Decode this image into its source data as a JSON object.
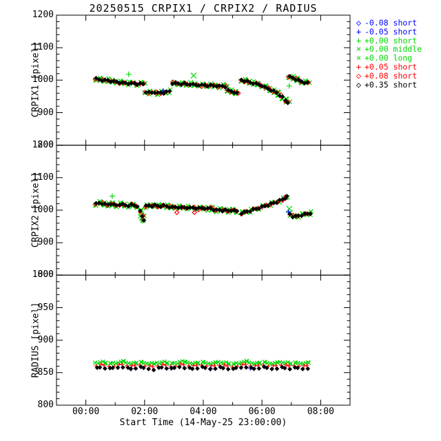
{
  "title": "20250515 CRPIX1 / CRPIX2 / RADIUS",
  "xlabel": "Start Time (14-May-25 23:00:00)",
  "x_axis": {
    "unit": "hours since 14-May-25 23:00:00",
    "range_hours": [
      0,
      10
    ],
    "minor_tick_every_hours": 1,
    "ticks": [
      {
        "t": 1,
        "label": "00:00"
      },
      {
        "t": 3,
        "label": "02:00"
      },
      {
        "t": 5,
        "label": "04:00"
      },
      {
        "t": 7,
        "label": "06:00"
      },
      {
        "t": 9,
        "label": "08:00"
      }
    ]
  },
  "legend": {
    "items": [
      {
        "symbol": "diamond-icon",
        "glyph": "◇",
        "color": "#0000ff",
        "label": "-0.08 short"
      },
      {
        "symbol": "plus-icon",
        "glyph": "+",
        "color": "#0000ff",
        "label": "-0.05 short"
      },
      {
        "symbol": "plus-icon",
        "glyph": "+",
        "color": "#00d800",
        "label": "+0.00 short"
      },
      {
        "symbol": "cross-icon",
        "glyph": "×",
        "color": "#00d800",
        "label": "+0.00 middle"
      },
      {
        "symbol": "cross-icon",
        "glyph": "×",
        "color": "#00d800",
        "label": "+0.00 long"
      },
      {
        "symbol": "plus-icon",
        "glyph": "+",
        "color": "#ff0000",
        "label": "+0.05 short"
      },
      {
        "symbol": "diamond-icon",
        "glyph": "◇",
        "color": "#ff0000",
        "label": "+0.08 short"
      },
      {
        "symbol": "diamond-icon",
        "glyph": "◇",
        "color": "#000000",
        "label": "+0.35 short"
      }
    ]
  },
  "colors": {
    "green": "#00d800",
    "red": "#ff0000",
    "blue": "#0000ff",
    "black": "#000000",
    "frame": "#000000",
    "background": "#ffffff"
  },
  "chart_data": [
    {
      "type": "scatter",
      "name": "CRPIX1",
      "ylabel": "CRPIX1 [pixel]",
      "ylim": [
        800,
        1200
      ],
      "yticks": [
        800,
        900,
        1000,
        1100,
        1200
      ],
      "yminor": 20,
      "points": [
        [
          1.35,
          1004
        ],
        [
          1.45,
          1002
        ],
        [
          1.55,
          1000
        ],
        [
          1.65,
          999
        ],
        [
          1.75,
          1000
        ],
        [
          1.85,
          997
        ],
        [
          1.95,
          995
        ],
        [
          2.05,
          996
        ],
        [
          2.15,
          993
        ],
        [
          2.25,
          991
        ],
        [
          2.35,
          992
        ],
        [
          2.45,
          990
        ],
        [
          2.55,
          989
        ],
        [
          2.65,
          991
        ],
        [
          2.75,
          988
        ],
        [
          2.85,
          989
        ],
        [
          2.95,
          988
        ],
        [
          3.05,
          964
        ],
        [
          3.15,
          962
        ],
        [
          3.25,
          961
        ],
        [
          3.35,
          963
        ],
        [
          3.45,
          960
        ],
        [
          3.55,
          962
        ],
        [
          3.65,
          961
        ],
        [
          3.75,
          963
        ],
        [
          3.85,
          966
        ],
        [
          3.95,
          991
        ],
        [
          4.05,
          989
        ],
        [
          4.15,
          990
        ],
        [
          4.25,
          988
        ],
        [
          4.35,
          989
        ],
        [
          4.45,
          987
        ],
        [
          4.55,
          988
        ],
        [
          4.65,
          986
        ],
        [
          4.75,
          985
        ],
        [
          4.85,
          986
        ],
        [
          4.95,
          984
        ],
        [
          5.05,
          985
        ],
        [
          5.15,
          983
        ],
        [
          5.25,
          984
        ],
        [
          5.35,
          982
        ],
        [
          5.45,
          983
        ],
        [
          5.55,
          981
        ],
        [
          5.65,
          982
        ],
        [
          5.75,
          980
        ],
        [
          5.85,
          968
        ],
        [
          5.95,
          966
        ],
        [
          6.05,
          963
        ],
        [
          6.15,
          959
        ],
        [
          6.3,
          1001
        ],
        [
          6.4,
          998
        ],
        [
          6.5,
          996
        ],
        [
          6.6,
          993
        ],
        [
          6.7,
          991
        ],
        [
          6.8,
          988
        ],
        [
          6.9,
          986
        ],
        [
          7.0,
          984
        ],
        [
          7.1,
          978
        ],
        [
          7.2,
          974
        ],
        [
          7.3,
          970
        ],
        [
          7.4,
          966
        ],
        [
          7.5,
          961
        ],
        [
          7.6,
          954
        ],
        [
          7.7,
          947
        ],
        [
          7.8,
          938
        ],
        [
          7.88,
          932
        ],
        [
          7.95,
          1010
        ],
        [
          8.05,
          1007
        ],
        [
          8.15,
          1003
        ],
        [
          8.25,
          999
        ],
        [
          8.35,
          996
        ],
        [
          8.45,
          993
        ],
        [
          8.55,
          991
        ]
      ],
      "outliers": {
        "green": [
          [
            2.46,
            1018
          ],
          [
            4.67,
            1014
          ],
          [
            7.93,
            982
          ]
        ],
        "blue": [
          [
            3.63,
            967
          ],
          [
            4.07,
            992
          ],
          [
            5.35,
            982
          ]
        ]
      }
    },
    {
      "type": "scatter",
      "name": "CRPIX2",
      "ylabel": "CRPIX2 [pixel]",
      "ylim": [
        800,
        1200
      ],
      "yticks": [
        800,
        900,
        1000,
        1100,
        1200
      ],
      "yminor": 20,
      "points": [
        [
          1.35,
          1019
        ],
        [
          1.45,
          1022
        ],
        [
          1.55,
          1021
        ],
        [
          1.65,
          1018
        ],
        [
          1.75,
          1017
        ],
        [
          1.85,
          1020
        ],
        [
          1.95,
          1016
        ],
        [
          2.05,
          1015
        ],
        [
          2.15,
          1018
        ],
        [
          2.25,
          1017
        ],
        [
          2.35,
          1015
        ],
        [
          2.45,
          1014
        ],
        [
          2.55,
          1016
        ],
        [
          2.65,
          1014
        ],
        [
          2.75,
          1013
        ],
        [
          2.85,
          996
        ],
        [
          2.92,
          981
        ],
        [
          2.98,
          971
        ],
        [
          3.05,
          1012
        ],
        [
          3.15,
          1014
        ],
        [
          3.25,
          1013
        ],
        [
          3.35,
          1015
        ],
        [
          3.45,
          1013
        ],
        [
          3.55,
          1012
        ],
        [
          3.65,
          1014
        ],
        [
          3.75,
          1012
        ],
        [
          3.85,
          1010
        ],
        [
          3.95,
          1008
        ],
        [
          4.05,
          1010
        ],
        [
          4.15,
          1009
        ],
        [
          4.25,
          1007
        ],
        [
          4.35,
          1009
        ],
        [
          4.45,
          1008
        ],
        [
          4.55,
          1006
        ],
        [
          4.65,
          1008
        ],
        [
          4.75,
          1007
        ],
        [
          4.85,
          1005
        ],
        [
          4.95,
          1007
        ],
        [
          5.05,
          1006
        ],
        [
          5.15,
          1004
        ],
        [
          5.25,
          1006
        ],
        [
          5.35,
          1002
        ],
        [
          5.45,
          1000
        ],
        [
          5.55,
          1001
        ],
        [
          5.65,
          999
        ],
        [
          5.75,
          1000
        ],
        [
          5.85,
          998
        ],
        [
          5.95,
          1000
        ],
        [
          6.05,
          998
        ],
        [
          6.15,
          997
        ],
        [
          6.3,
          991
        ],
        [
          6.4,
          993
        ],
        [
          6.5,
          996
        ],
        [
          6.6,
          998
        ],
        [
          6.7,
          1001
        ],
        [
          6.8,
          1004
        ],
        [
          6.9,
          1007
        ],
        [
          7.0,
          1010
        ],
        [
          7.1,
          1013
        ],
        [
          7.2,
          1016
        ],
        [
          7.3,
          1019
        ],
        [
          7.4,
          1022
        ],
        [
          7.5,
          1025
        ],
        [
          7.6,
          1029
        ],
        [
          7.7,
          1033
        ],
        [
          7.8,
          1038
        ],
        [
          7.85,
          1041
        ],
        [
          7.95,
          988
        ],
        [
          8.05,
          981
        ],
        [
          8.15,
          980
        ],
        [
          8.25,
          983
        ],
        [
          8.35,
          985
        ],
        [
          8.45,
          987
        ],
        [
          8.55,
          989
        ],
        [
          8.65,
          991
        ]
      ],
      "outliers": {
        "green": [
          [
            1.9,
            1043
          ],
          [
            2.88,
            1000
          ],
          [
            2.9,
            990
          ],
          [
            2.92,
            978
          ],
          [
            2.94,
            968
          ],
          [
            7.93,
            1004
          ]
        ],
        "red_diamond": [
          [
            4.1,
            993
          ],
          [
            4.7,
            993
          ]
        ],
        "blue": [
          [
            7.9,
            994
          ]
        ]
      }
    },
    {
      "type": "scatter",
      "name": "RADIUS",
      "ylabel": "RADIUS [pixel]",
      "ylim": [
        800,
        1000
      ],
      "yticks": [
        800,
        850,
        900,
        950,
        1000
      ],
      "yminor": 10,
      "series_t0": 1.35,
      "series_dt": 0.15,
      "series": [
        {
          "name": "+0.00 (green)",
          "color": "#00d800",
          "symbol": "cross",
          "double": true,
          "values": [
            865,
            866,
            865,
            864,
            865,
            866,
            867,
            865,
            864,
            865,
            866,
            865,
            864,
            863,
            865,
            866,
            865,
            864,
            865,
            867,
            866,
            865,
            864,
            865,
            866,
            865,
            864,
            865,
            866,
            865,
            864,
            863,
            865,
            866,
            867,
            865,
            864,
            865,
            866,
            865,
            864,
            865,
            866,
            865,
            864,
            865,
            865,
            864,
            865
          ]
        },
        {
          "name": "+0.05 / +0.08 (red)",
          "color": "#ff0000",
          "symbol": "plus",
          "double": false,
          "values": [
            861,
            862,
            861,
            860,
            861,
            862,
            863,
            861,
            860,
            861,
            862,
            861,
            860,
            859,
            861,
            862,
            861,
            860,
            861,
            863,
            862,
            861,
            860,
            861,
            862,
            861,
            860,
            861,
            862,
            861,
            860,
            859,
            861,
            862,
            863,
            861,
            860,
            861,
            862,
            861,
            860,
            861,
            862,
            861,
            860,
            861,
            861,
            860,
            861
          ]
        },
        {
          "name": "+0.35 (black)",
          "color": "#000000",
          "symbol": "diamond",
          "double": false,
          "values": [
            857,
            858,
            857,
            856,
            857,
            858,
            859,
            857,
            856,
            857,
            858,
            857,
            856,
            855,
            857,
            858,
            857,
            856,
            857,
            859,
            858,
            857,
            856,
            857,
            858,
            857,
            856,
            857,
            858,
            857,
            856,
            855,
            857,
            858,
            859,
            857,
            856,
            857,
            858,
            857,
            856,
            857,
            858,
            857,
            856,
            857,
            857,
            856,
            857
          ]
        }
      ],
      "outliers": {
        "blue": [
          [
            2.55,
            856
          ],
          [
            3.9,
            857
          ],
          [
            5.25,
            856
          ],
          [
            6.6,
            857
          ]
        ]
      }
    }
  ]
}
